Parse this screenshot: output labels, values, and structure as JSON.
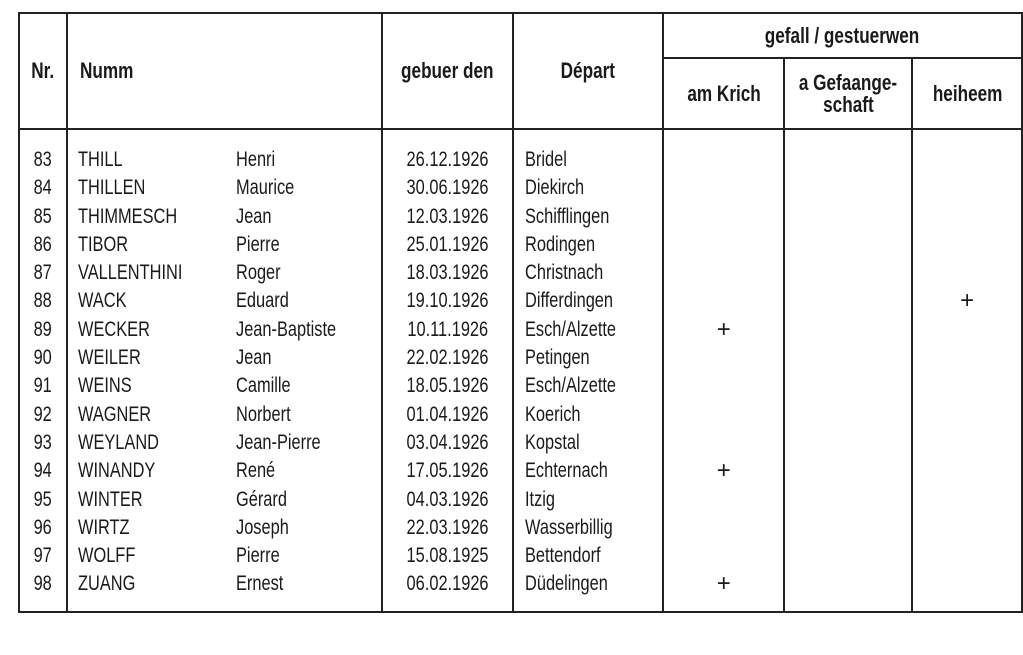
{
  "header": {
    "nr": "Nr.",
    "name": "Numm",
    "born": "gebuer den",
    "depart": "Départ",
    "group": "gefall / gestuerwen",
    "war": "am Krich",
    "captivity_1": "a Gefaange-",
    "captivity_2": "schaft",
    "home": "heiheem"
  },
  "mark_symbol": "+",
  "rows": [
    {
      "nr": "83",
      "surname": "THILL",
      "firstname": "Henri",
      "born": "26.12.1926",
      "depart": "Bridel",
      "war": "",
      "captivity": "",
      "home": ""
    },
    {
      "nr": "84",
      "surname": "THILLEN",
      "firstname": "Maurice",
      "born": "30.06.1926",
      "depart": "Diekirch",
      "war": "",
      "captivity": "",
      "home": ""
    },
    {
      "nr": "85",
      "surname": "THIMMESCH",
      "firstname": "Jean",
      "born": "12.03.1926",
      "depart": "Schifflingen",
      "war": "",
      "captivity": "",
      "home": ""
    },
    {
      "nr": "86",
      "surname": "TIBOR",
      "firstname": "Pierre",
      "born": "25.01.1926",
      "depart": "Rodingen",
      "war": "",
      "captivity": "",
      "home": ""
    },
    {
      "nr": "87",
      "surname": "VALLENTHINI",
      "firstname": "Roger",
      "born": "18.03.1926",
      "depart": "Christnach",
      "war": "",
      "captivity": "",
      "home": ""
    },
    {
      "nr": "88",
      "surname": "WACK",
      "firstname": "Eduard",
      "born": "19.10.1926",
      "depart": "Differdingen",
      "war": "",
      "captivity": "",
      "home": "+"
    },
    {
      "nr": "89",
      "surname": "WECKER",
      "firstname": "Jean-Baptiste",
      "born": "10.11.1926",
      "depart": "Esch/Alzette",
      "war": "+",
      "captivity": "",
      "home": ""
    },
    {
      "nr": "90",
      "surname": "WEILER",
      "firstname": "Jean",
      "born": "22.02.1926",
      "depart": "Petingen",
      "war": "",
      "captivity": "",
      "home": ""
    },
    {
      "nr": "91",
      "surname": "WEINS",
      "firstname": "Camille",
      "born": "18.05.1926",
      "depart": "Esch/Alzette",
      "war": "",
      "captivity": "",
      "home": ""
    },
    {
      "nr": "92",
      "surname": "WAGNER",
      "firstname": "Norbert",
      "born": "01.04.1926",
      "depart": "Koerich",
      "war": "",
      "captivity": "",
      "home": ""
    },
    {
      "nr": "93",
      "surname": "WEYLAND",
      "firstname": "Jean-Pierre",
      "born": "03.04.1926",
      "depart": "Kopstal",
      "war": "",
      "captivity": "",
      "home": ""
    },
    {
      "nr": "94",
      "surname": "WINANDY",
      "firstname": "René",
      "born": "17.05.1926",
      "depart": "Echternach",
      "war": "+",
      "captivity": "",
      "home": ""
    },
    {
      "nr": "95",
      "surname": "WINTER",
      "firstname": "Gérard",
      "born": "04.03.1926",
      "depart": "Itzig",
      "war": "",
      "captivity": "",
      "home": ""
    },
    {
      "nr": "96",
      "surname": "WIRTZ",
      "firstname": "Joseph",
      "born": "22.03.1926",
      "depart": "Wasserbillig",
      "war": "",
      "captivity": "",
      "home": ""
    },
    {
      "nr": "97",
      "surname": "WOLFF",
      "firstname": "Pierre",
      "born": "15.08.1925",
      "depart": "Bettendorf",
      "war": "",
      "captivity": "",
      "home": ""
    },
    {
      "nr": "98",
      "surname": "ZUANG",
      "firstname": "Ernest",
      "born": "06.02.1926",
      "depart": "Düdelingen",
      "war": "+",
      "captivity": "",
      "home": ""
    }
  ]
}
